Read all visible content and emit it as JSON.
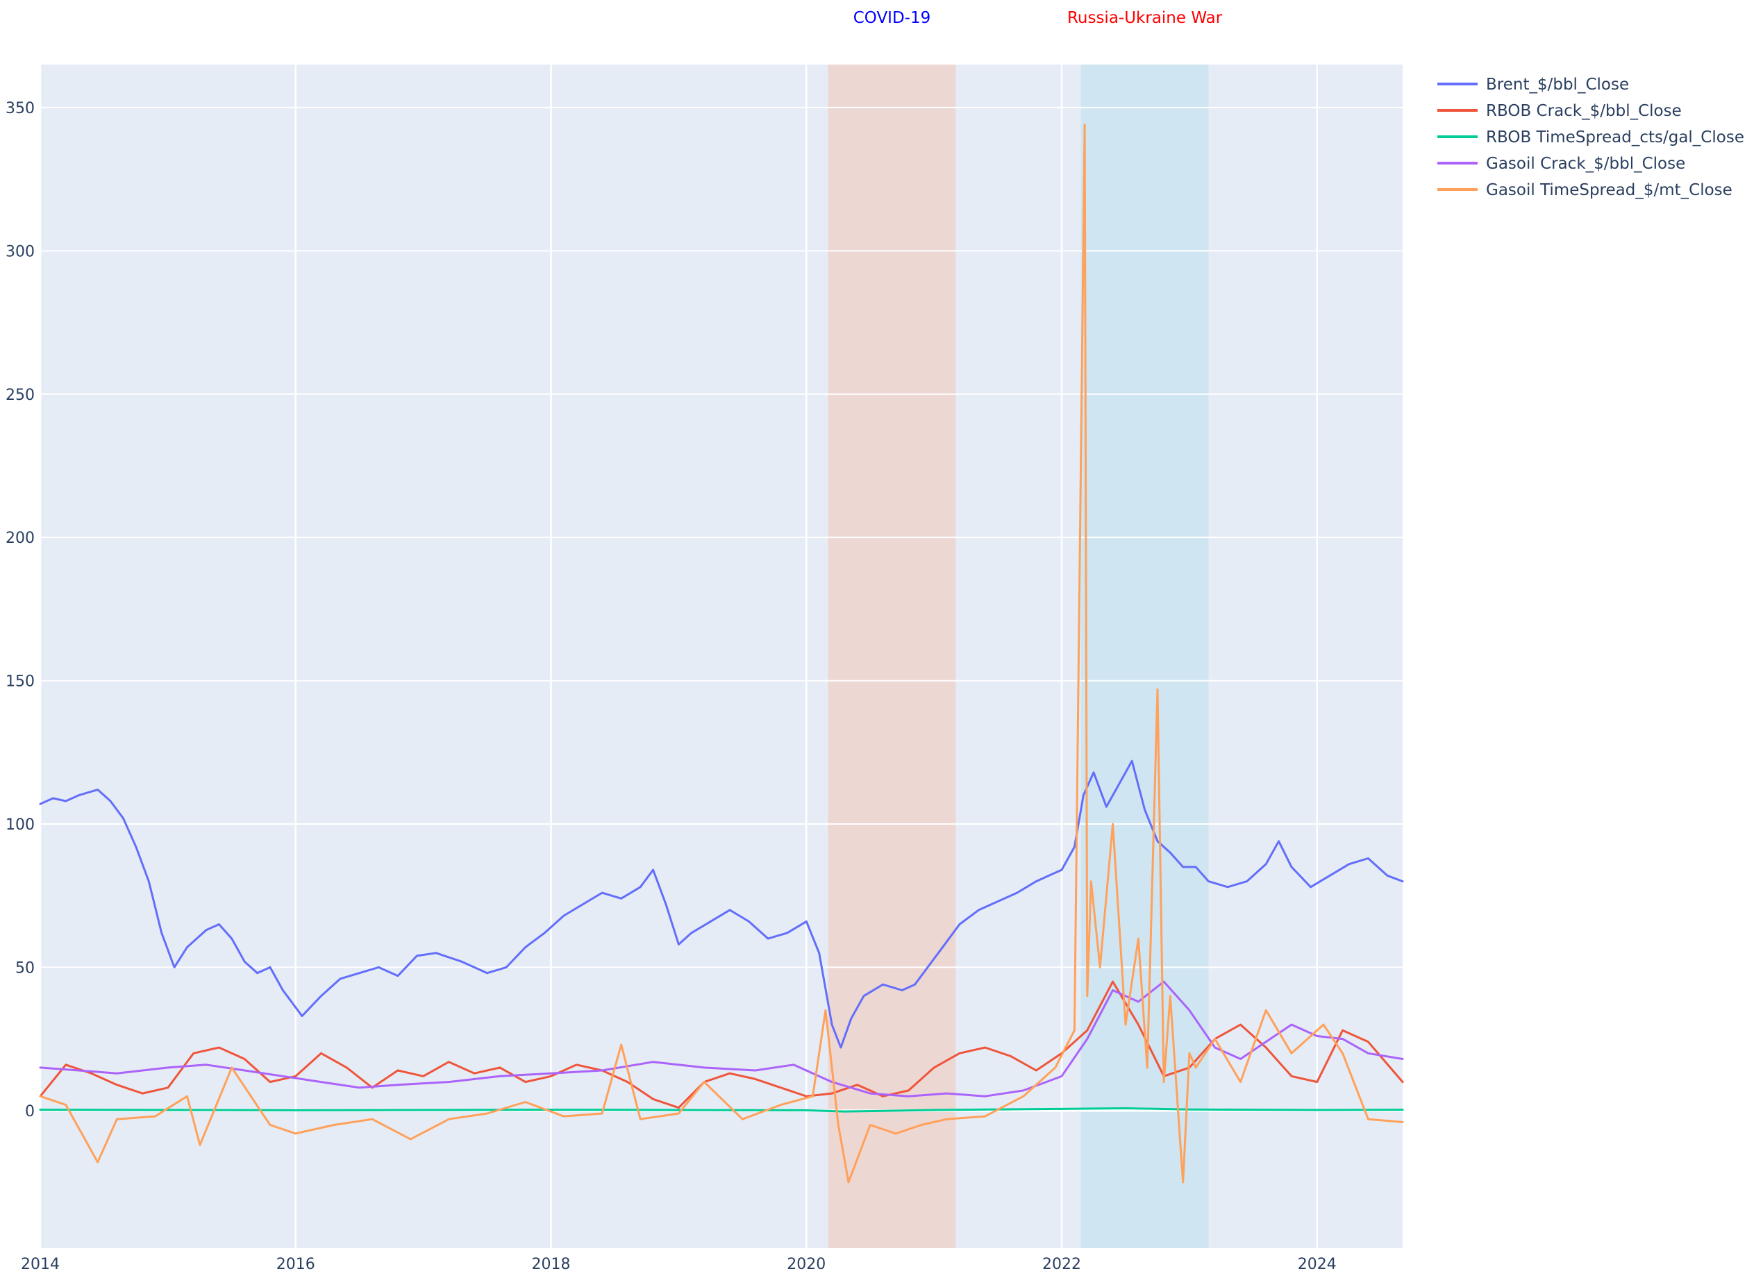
{
  "chart_data": {
    "type": "line",
    "title": "",
    "xlabel": "",
    "ylabel": "",
    "xlim": [
      2014.0,
      2024.67
    ],
    "ylim": [
      -48,
      365
    ],
    "x_ticks": [
      {
        "value": 2014,
        "label": "2014"
      },
      {
        "value": 2016,
        "label": "2016"
      },
      {
        "value": 2018,
        "label": "2018"
      },
      {
        "value": 2020,
        "label": "2020"
      },
      {
        "value": 2022,
        "label": "2022"
      },
      {
        "value": 2024,
        "label": "2024"
      }
    ],
    "y_ticks": [
      {
        "value": 0,
        "label": "0"
      },
      {
        "value": 50,
        "label": "50"
      },
      {
        "value": 100,
        "label": "100"
      },
      {
        "value": 150,
        "label": "150"
      },
      {
        "value": 200,
        "label": "200"
      },
      {
        "value": 250,
        "label": "250"
      },
      {
        "value": 300,
        "label": "300"
      },
      {
        "value": 350,
        "label": "350"
      }
    ],
    "grid": true,
    "legend_position": "top-right",
    "plot_background": "#e5ecf6",
    "annotations": [
      {
        "label": "COVID-19",
        "start": 2020.17,
        "end": 2021.17,
        "shade_color": "#f4c6b6",
        "text_color": "#0000ff"
      },
      {
        "label": "Russia-Ukraine War",
        "start": 2022.15,
        "end": 2023.15,
        "shade_color": "#bde0ef",
        "text_color": "#ff0000"
      }
    ],
    "series": [
      {
        "name": "Brent_$/bbl_Close",
        "color": "#636efa",
        "x": [
          2014.0,
          2014.1,
          2014.2,
          2014.3,
          2014.45,
          2014.55,
          2014.65,
          2014.75,
          2014.85,
          2014.95,
          2015.05,
          2015.15,
          2015.3,
          2015.4,
          2015.5,
          2015.6,
          2015.7,
          2015.8,
          2015.9,
          2016.05,
          2016.2,
          2016.35,
          2016.5,
          2016.65,
          2016.8,
          2016.95,
          2017.1,
          2017.3,
          2017.5,
          2017.65,
          2017.8,
          2017.95,
          2018.1,
          2018.25,
          2018.4,
          2018.55,
          2018.7,
          2018.8,
          2018.9,
          2019.0,
          2019.1,
          2019.25,
          2019.4,
          2019.55,
          2019.7,
          2019.85,
          2020.0,
          2020.1,
          2020.2,
          2020.27,
          2020.35,
          2020.45,
          2020.6,
          2020.75,
          2020.85,
          2020.95,
          2021.05,
          2021.2,
          2021.35,
          2021.5,
          2021.65,
          2021.8,
          2021.9,
          2022.0,
          2022.1,
          2022.17,
          2022.25,
          2022.35,
          2022.45,
          2022.55,
          2022.65,
          2022.75,
          2022.85,
          2022.95,
          2023.05,
          2023.15,
          2023.3,
          2023.45,
          2023.6,
          2023.7,
          2023.8,
          2023.95,
          2024.1,
          2024.25,
          2024.4,
          2024.55,
          2024.67
        ],
        "y": [
          107,
          109,
          108,
          110,
          112,
          108,
          102,
          92,
          80,
          62,
          50,
          57,
          63,
          65,
          60,
          52,
          48,
          50,
          42,
          33,
          40,
          46,
          48,
          50,
          47,
          54,
          55,
          52,
          48,
          50,
          57,
          62,
          68,
          72,
          76,
          74,
          78,
          84,
          72,
          58,
          62,
          66,
          70,
          66,
          60,
          62,
          66,
          55,
          30,
          22,
          32,
          40,
          44,
          42,
          44,
          50,
          56,
          65,
          70,
          73,
          76,
          80,
          82,
          84,
          92,
          110,
          118,
          106,
          114,
          122,
          105,
          94,
          90,
          85,
          85,
          80,
          78,
          80,
          86,
          94,
          85,
          78,
          82,
          86,
          88,
          82,
          80
        ]
      },
      {
        "name": "RBOB Crack_$/bbl_Close",
        "color": "#ef553b",
        "x": [
          2014.0,
          2014.2,
          2014.4,
          2014.6,
          2014.8,
          2015.0,
          2015.2,
          2015.4,
          2015.6,
          2015.8,
          2016.0,
          2016.2,
          2016.4,
          2016.6,
          2016.8,
          2017.0,
          2017.2,
          2017.4,
          2017.6,
          2017.8,
          2018.0,
          2018.2,
          2018.4,
          2018.6,
          2018.8,
          2019.0,
          2019.2,
          2019.4,
          2019.6,
          2019.8,
          2020.0,
          2020.2,
          2020.4,
          2020.6,
          2020.8,
          2021.0,
          2021.2,
          2021.4,
          2021.6,
          2021.8,
          2022.0,
          2022.2,
          2022.4,
          2022.6,
          2022.8,
          2023.0,
          2023.2,
          2023.4,
          2023.6,
          2023.8,
          2024.0,
          2024.2,
          2024.4,
          2024.67
        ],
        "y": [
          5,
          16,
          13,
          9,
          6,
          8,
          20,
          22,
          18,
          10,
          12,
          20,
          15,
          8,
          14,
          12,
          17,
          13,
          15,
          10,
          12,
          16,
          14,
          10,
          4,
          1,
          10,
          13,
          11,
          8,
          5,
          6,
          9,
          5,
          7,
          15,
          20,
          22,
          19,
          14,
          20,
          28,
          45,
          30,
          12,
          15,
          25,
          30,
          22,
          12,
          10,
          28,
          24,
          10
        ]
      },
      {
        "name": "RBOB TimeSpread_cts/gal_Close",
        "color": "#00cc96",
        "x": [
          2014.0,
          2015.0,
          2016.0,
          2017.0,
          2018.0,
          2019.0,
          2020.0,
          2020.3,
          2021.0,
          2022.0,
          2022.5,
          2023.0,
          2024.0,
          2024.67
        ],
        "y": [
          0.3,
          0.2,
          0.1,
          0.2,
          0.3,
          0.2,
          0.1,
          -0.3,
          0.2,
          0.6,
          0.8,
          0.4,
          0.2,
          0.3
        ]
      },
      {
        "name": "Gasoil Crack_$/bbl_Close",
        "color": "#ab63fa",
        "x": [
          2014.0,
          2014.3,
          2014.6,
          2015.0,
          2015.3,
          2015.6,
          2015.9,
          2016.2,
          2016.5,
          2016.8,
          2017.2,
          2017.6,
          2018.0,
          2018.4,
          2018.8,
          2019.2,
          2019.6,
          2019.9,
          2020.2,
          2020.5,
          2020.8,
          2021.1,
          2021.4,
          2021.7,
          2022.0,
          2022.2,
          2022.4,
          2022.6,
          2022.8,
          2023.0,
          2023.2,
          2023.4,
          2023.6,
          2023.8,
          2024.0,
          2024.2,
          2024.4,
          2024.67
        ],
        "y": [
          15,
          14,
          13,
          15,
          16,
          14,
          12,
          10,
          8,
          9,
          10,
          12,
          13,
          14,
          17,
          15,
          14,
          16,
          10,
          6,
          5,
          6,
          5,
          7,
          12,
          25,
          42,
          38,
          45,
          35,
          22,
          18,
          24,
          30,
          26,
          25,
          20,
          18
        ]
      },
      {
        "name": "Gasoil TimeSpread_$/mt_Close",
        "color": "#ffa15a",
        "x": [
          2014.0,
          2014.2,
          2014.45,
          2014.6,
          2014.9,
          2015.15,
          2015.25,
          2015.5,
          2015.8,
          2016.0,
          2016.3,
          2016.6,
          2016.9,
          2017.2,
          2017.5,
          2017.8,
          2018.1,
          2018.4,
          2018.55,
          2018.7,
          2019.0,
          2019.2,
          2019.5,
          2019.8,
          2020.05,
          2020.15,
          2020.25,
          2020.33,
          2020.5,
          2020.7,
          2020.9,
          2021.1,
          2021.4,
          2021.7,
          2021.95,
          2022.1,
          2022.18,
          2022.2,
          2022.23,
          2022.3,
          2022.4,
          2022.5,
          2022.6,
          2022.67,
          2022.75,
          2022.8,
          2022.85,
          2022.95,
          2023.0,
          2023.05,
          2023.2,
          2023.4,
          2023.6,
          2023.8,
          2024.05,
          2024.2,
          2024.4,
          2024.67
        ],
        "y": [
          5,
          2,
          -18,
          -3,
          -2,
          5,
          -12,
          15,
          -5,
          -8,
          -5,
          -3,
          -10,
          -3,
          -1,
          3,
          -2,
          -1,
          23,
          -3,
          -1,
          10,
          -3,
          2,
          5,
          35,
          -5,
          -25,
          -5,
          -8,
          -5,
          -3,
          -2,
          5,
          15,
          28,
          344,
          40,
          80,
          50,
          100,
          30,
          60,
          15,
          147,
          10,
          40,
          -25,
          20,
          15,
          25,
          10,
          35,
          20,
          30,
          20,
          -3,
          -4
        ]
      }
    ]
  }
}
